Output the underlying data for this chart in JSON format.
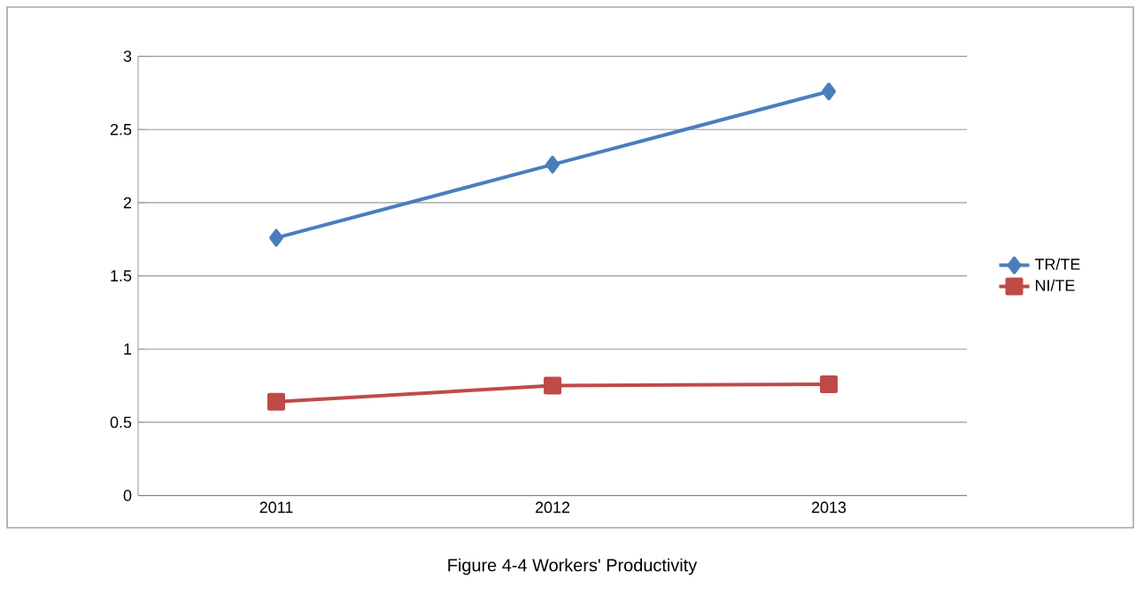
{
  "chart_data": {
    "type": "line",
    "categories": [
      "2011",
      "2012",
      "2013"
    ],
    "series": [
      {
        "name": "TR/TE",
        "color": "#4a7ebb",
        "marker": "diamond",
        "values": [
          1.76,
          2.26,
          2.76
        ]
      },
      {
        "name": "NI/TE",
        "color": "#be4b48",
        "marker": "square",
        "values": [
          0.64,
          0.75,
          0.76
        ]
      }
    ],
    "ylim": [
      0,
      3
    ],
    "yticks": [
      0,
      0.5,
      1,
      1.5,
      2,
      2.5,
      3
    ],
    "grid": "y",
    "legend": "right",
    "annotations": [
      "Figure 4-4 Workers' Productivity"
    ]
  }
}
